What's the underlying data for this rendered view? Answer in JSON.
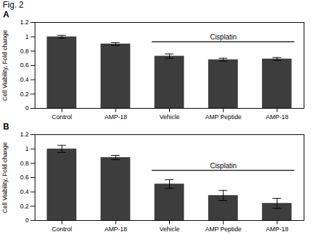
{
  "chart_data": [
    {
      "type": "bar",
      "title": "A",
      "categories": [
        "Control",
        "AMP-18",
        "Vehicle",
        "AMP Peptide",
        "AMP-18"
      ],
      "values": [
        1.0,
        0.9,
        0.73,
        0.68,
        0.69
      ],
      "errors": [
        0.02,
        0.02,
        0.03,
        0.02,
        0.02
      ],
      "ylabel": "Cell Viability, Fold change",
      "ylim": [
        0,
        1.2
      ],
      "yticks": [
        0,
        0.2,
        0.4,
        0.6,
        0.8,
        1,
        1.2
      ],
      "color": "#3d3d3d",
      "annotations": [
        {
          "text": "Fig. 2"
        },
        {
          "text": "Cisplatin",
          "y": 0.93
        }
      ]
    },
    {
      "type": "bar",
      "title": "B",
      "categories": [
        "Control",
        "AMP-18",
        "Vehicle",
        "AMP Peptide",
        "AMP-18"
      ],
      "values": [
        1.0,
        0.88,
        0.51,
        0.35,
        0.24
      ],
      "errors": [
        0.05,
        0.03,
        0.06,
        0.07,
        0.07
      ],
      "ylabel": "Cell Viability, Fold change",
      "ylim": [
        0,
        1.2
      ],
      "yticks": [
        0,
        0.2,
        0.4,
        0.6,
        0.8,
        1,
        1.2
      ],
      "color": "#3d3d3d",
      "annotations": [
        {
          "text": "Cisplatin",
          "y": 0.7
        }
      ]
    }
  ]
}
